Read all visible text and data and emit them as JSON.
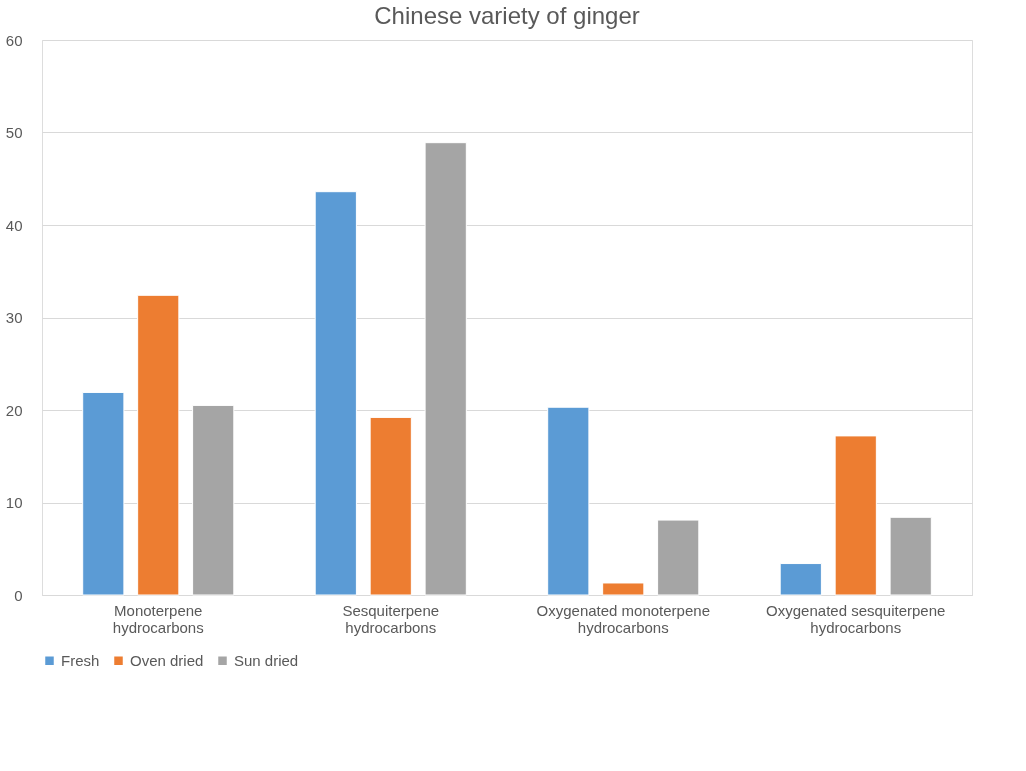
{
  "chart_data": {
    "type": "bar",
    "title": "Chinese variety of ginger",
    "categories": [
      "Monoterpene hydrocarbons",
      "Sesquiterpene hydrocarbons",
      "Oxygenated monoterpene hydrocarbons",
      "Oxygenated sesquiterpene hydrocarbons"
    ],
    "series": [
      {
        "name": "Fresh",
        "color": "#5b9bd5",
        "values": [
          21.9,
          43.6,
          20.3,
          3.4
        ]
      },
      {
        "name": "Oven dried",
        "color": "#ed7d31",
        "values": [
          32.4,
          19.2,
          1.3,
          17.2
        ]
      },
      {
        "name": "Sun dried",
        "color": "#a5a5a5",
        "values": [
          20.5,
          48.9,
          8.1,
          8.4
        ]
      }
    ],
    "ylim": [
      0,
      60
    ],
    "yticks": [
      0,
      10,
      20,
      30,
      40,
      50,
      60
    ],
    "grid": "y",
    "legend": "bottom"
  }
}
